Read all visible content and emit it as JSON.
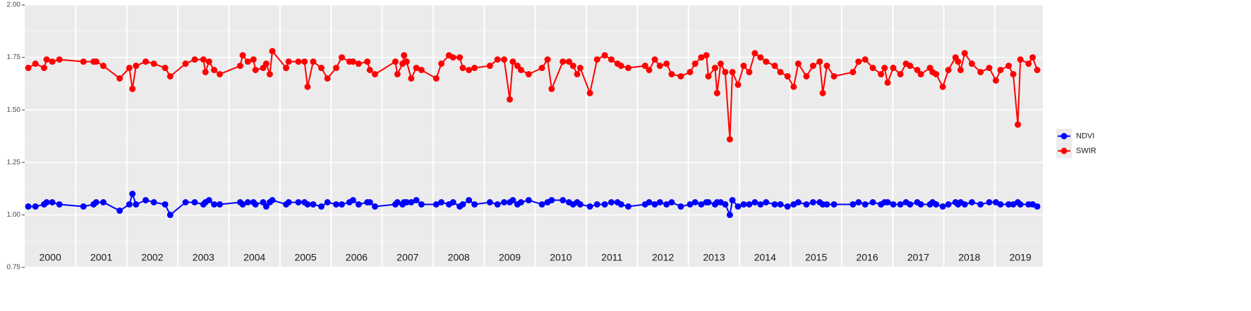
{
  "chart_data": {
    "type": "line",
    "x": [
      2000.07,
      2000.21,
      2000.38,
      2000.43,
      2000.54,
      2000.68,
      2001.15,
      2001.35,
      2001.4,
      2001.54,
      2001.86,
      2002.05,
      2002.11,
      2002.18,
      2002.37,
      2002.53,
      2002.75,
      2002.85,
      2003.15,
      2003.33,
      2003.5,
      2003.54,
      2003.61,
      2003.71,
      2003.82,
      2004.22,
      2004.27,
      2004.37,
      2004.48,
      2004.52,
      2004.67,
      2004.73,
      2004.8,
      2004.85,
      2005.12,
      2005.17,
      2005.36,
      2005.48,
      2005.54,
      2005.65,
      2005.81,
      2005.93,
      2006.1,
      2006.21,
      2006.36,
      2006.43,
      2006.54,
      2006.71,
      2006.76,
      2006.86,
      2007.26,
      2007.3,
      2007.4,
      2007.43,
      2007.48,
      2007.57,
      2007.67,
      2007.77,
      2008.06,
      2008.16,
      2008.31,
      2008.39,
      2008.52,
      2008.58,
      2008.7,
      2008.81,
      2009.11,
      2009.26,
      2009.39,
      2009.5,
      2009.56,
      2009.65,
      2009.72,
      2009.87,
      2010.13,
      2010.24,
      2010.32,
      2010.54,
      2010.66,
      2010.74,
      2010.82,
      2010.88,
      2011.07,
      2011.21,
      2011.36,
      2011.49,
      2011.61,
      2011.68,
      2011.82,
      2012.15,
      2012.23,
      2012.34,
      2012.44,
      2012.57,
      2012.67,
      2012.85,
      2013.03,
      2013.13,
      2013.25,
      2013.35,
      2013.39,
      2013.52,
      2013.56,
      2013.63,
      2013.72,
      2013.81,
      2013.86,
      2013.97,
      2014.08,
      2014.19,
      2014.3,
      2014.41,
      2014.52,
      2014.69,
      2014.8,
      2014.94,
      2015.06,
      2015.15,
      2015.31,
      2015.44,
      2015.57,
      2015.63,
      2015.71,
      2015.85,
      2016.22,
      2016.33,
      2016.46,
      2016.61,
      2016.77,
      2016.84,
      2016.9,
      2017.01,
      2017.15,
      2017.26,
      2017.34,
      2017.48,
      2017.55,
      2017.73,
      2017.78,
      2017.85,
      2017.98,
      2018.09,
      2018.23,
      2018.28,
      2018.33,
      2018.41,
      2018.55,
      2018.72,
      2018.89,
      2019.02,
      2019.11,
      2019.27,
      2019.36,
      2019.45,
      2019.5,
      2019.66,
      2019.74,
      2019.83
    ],
    "series": [
      {
        "name": "NDVI",
        "color": "#0000ff",
        "values": [
          1.04,
          1.04,
          1.05,
          1.06,
          1.06,
          1.05,
          1.04,
          1.05,
          1.06,
          1.06,
          1.02,
          1.05,
          1.1,
          1.05,
          1.07,
          1.06,
          1.05,
          1.0,
          1.06,
          1.06,
          1.05,
          1.06,
          1.07,
          1.05,
          1.05,
          1.06,
          1.05,
          1.06,
          1.06,
          1.05,
          1.06,
          1.04,
          1.06,
          1.07,
          1.05,
          1.06,
          1.06,
          1.06,
          1.05,
          1.05,
          1.04,
          1.06,
          1.05,
          1.05,
          1.06,
          1.07,
          1.05,
          1.06,
          1.06,
          1.04,
          1.05,
          1.06,
          1.05,
          1.06,
          1.06,
          1.06,
          1.07,
          1.05,
          1.05,
          1.06,
          1.05,
          1.06,
          1.04,
          1.05,
          1.07,
          1.05,
          1.06,
          1.05,
          1.06,
          1.06,
          1.07,
          1.05,
          1.06,
          1.07,
          1.05,
          1.06,
          1.07,
          1.07,
          1.06,
          1.05,
          1.06,
          1.05,
          1.04,
          1.05,
          1.05,
          1.06,
          1.06,
          1.05,
          1.04,
          1.05,
          1.06,
          1.05,
          1.06,
          1.05,
          1.06,
          1.04,
          1.05,
          1.06,
          1.05,
          1.06,
          1.06,
          1.05,
          1.06,
          1.06,
          1.05,
          1.0,
          1.07,
          1.04,
          1.05,
          1.05,
          1.06,
          1.05,
          1.06,
          1.05,
          1.05,
          1.04,
          1.05,
          1.06,
          1.05,
          1.06,
          1.06,
          1.05,
          1.05,
          1.05,
          1.05,
          1.06,
          1.05,
          1.06,
          1.05,
          1.06,
          1.06,
          1.05,
          1.05,
          1.06,
          1.05,
          1.06,
          1.05,
          1.05,
          1.06,
          1.05,
          1.04,
          1.05,
          1.06,
          1.05,
          1.06,
          1.05,
          1.06,
          1.05,
          1.06,
          1.06,
          1.05,
          1.05,
          1.05,
          1.06,
          1.05,
          1.05,
          1.05,
          1.04
        ]
      },
      {
        "name": "SWIR",
        "color": "#ff0000",
        "values": [
          1.7,
          1.72,
          1.7,
          1.74,
          1.73,
          1.74,
          1.73,
          1.73,
          1.73,
          1.71,
          1.65,
          1.7,
          1.6,
          1.71,
          1.73,
          1.72,
          1.7,
          1.66,
          1.72,
          1.74,
          1.74,
          1.68,
          1.73,
          1.69,
          1.67,
          1.71,
          1.76,
          1.73,
          1.74,
          1.69,
          1.7,
          1.72,
          1.67,
          1.78,
          1.7,
          1.73,
          1.73,
          1.73,
          1.61,
          1.73,
          1.7,
          1.65,
          1.7,
          1.75,
          1.73,
          1.73,
          1.72,
          1.73,
          1.69,
          1.67,
          1.73,
          1.67,
          1.72,
          1.76,
          1.73,
          1.65,
          1.7,
          1.69,
          1.65,
          1.72,
          1.76,
          1.75,
          1.75,
          1.7,
          1.69,
          1.7,
          1.71,
          1.74,
          1.74,
          1.55,
          1.73,
          1.71,
          1.69,
          1.67,
          1.7,
          1.74,
          1.6,
          1.73,
          1.73,
          1.71,
          1.67,
          1.7,
          1.58,
          1.74,
          1.76,
          1.74,
          1.72,
          1.71,
          1.7,
          1.71,
          1.69,
          1.74,
          1.71,
          1.72,
          1.67,
          1.66,
          1.68,
          1.72,
          1.75,
          1.76,
          1.66,
          1.7,
          1.58,
          1.72,
          1.68,
          1.36,
          1.68,
          1.62,
          1.71,
          1.68,
          1.77,
          1.75,
          1.73,
          1.71,
          1.68,
          1.66,
          1.61,
          1.72,
          1.66,
          1.71,
          1.73,
          1.58,
          1.71,
          1.66,
          1.68,
          1.73,
          1.74,
          1.7,
          1.67,
          1.7,
          1.63,
          1.7,
          1.67,
          1.72,
          1.71,
          1.69,
          1.67,
          1.7,
          1.68,
          1.67,
          1.61,
          1.69,
          1.75,
          1.73,
          1.69,
          1.77,
          1.72,
          1.68,
          1.7,
          1.64,
          1.69,
          1.71,
          1.67,
          1.43,
          1.74,
          1.72,
          1.75,
          1.69
        ]
      }
    ],
    "xlim": [
      2000,
      2019.94
    ],
    "xticks": [
      {
        "value": 2000.5,
        "label": "2000"
      },
      {
        "value": 2001.5,
        "label": "2001"
      },
      {
        "value": 2002.5,
        "label": "2002"
      },
      {
        "value": 2003.5,
        "label": "2003"
      },
      {
        "value": 2004.5,
        "label": "2004"
      },
      {
        "value": 2005.5,
        "label": "2005"
      },
      {
        "value": 2006.5,
        "label": "2006"
      },
      {
        "value": 2007.5,
        "label": "2007"
      },
      {
        "value": 2008.5,
        "label": "2008"
      },
      {
        "value": 2009.5,
        "label": "2009"
      },
      {
        "value": 2010.5,
        "label": "2010"
      },
      {
        "value": 2011.5,
        "label": "2011"
      },
      {
        "value": 2012.5,
        "label": "2012"
      },
      {
        "value": 2013.5,
        "label": "2013"
      },
      {
        "value": 2014.5,
        "label": "2014"
      },
      {
        "value": 2015.5,
        "label": "2015"
      },
      {
        "value": 2016.5,
        "label": "2016"
      },
      {
        "value": 2017.5,
        "label": "2017"
      },
      {
        "value": 2018.5,
        "label": "2018"
      },
      {
        "value": 2019.5,
        "label": "2019"
      }
    ],
    "xgrid": [
      2001,
      2002,
      2003,
      2004,
      2005,
      2006,
      2007,
      2008,
      2009,
      2010,
      2011,
      2012,
      2013,
      2014,
      2015,
      2016,
      2017,
      2018,
      2019
    ],
    "ylim": [
      0.75,
      2.0
    ],
    "yticks": [
      0.75,
      {
        "value": 1,
        "label": "1.00"
      },
      1.25,
      {
        "value": 1.5,
        "label": "1.50"
      },
      1.75,
      {
        "value": 2,
        "label": "2.00"
      }
    ],
    "yminor": [
      0.875,
      1.125,
      1.375,
      1.625,
      1.875
    ],
    "grid": true,
    "legend": "right"
  }
}
